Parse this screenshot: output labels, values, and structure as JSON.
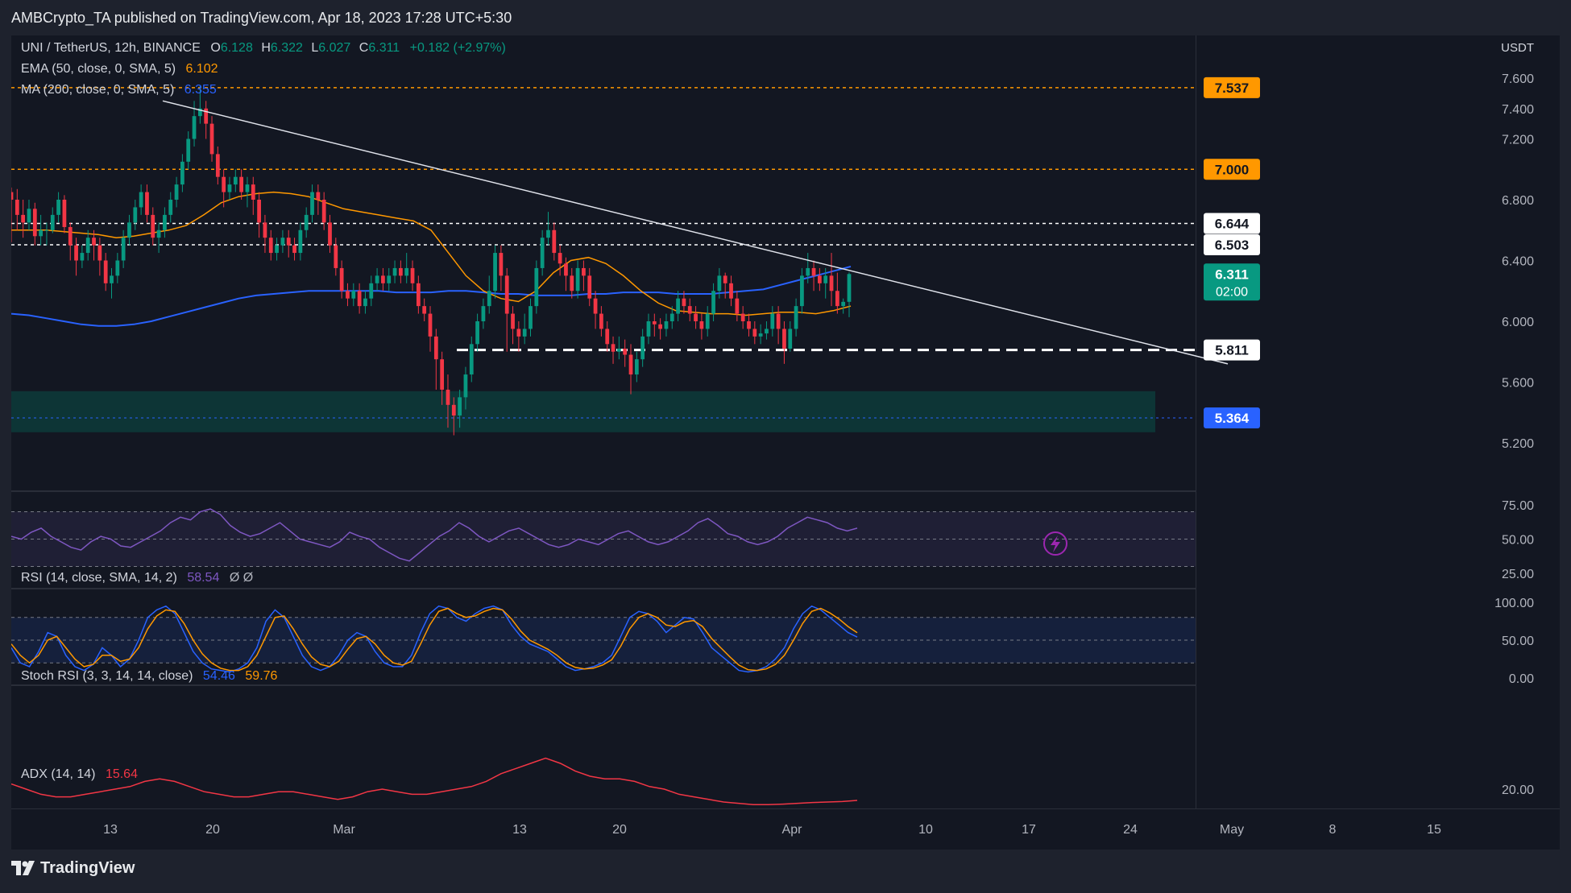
{
  "header": {
    "publisher": "AMBCrypto_TA published on TradingView.com, Apr 18, 2023 17:28 UTC+5:30"
  },
  "footer": {
    "brand": "TradingView"
  },
  "currency": "USDT",
  "legend": {
    "symbol": "UNI / TetherUS, 12h, BINANCE",
    "open_label": "O",
    "open": "6.128",
    "high_label": "H",
    "high": "6.322",
    "low_label": "L",
    "low": "6.027",
    "close_label": "C",
    "close": "6.311",
    "change": "+0.182 (+2.97%)",
    "ema_label": "EMA (50, close, 0, SMA, 5)",
    "ema_value": "6.102",
    "ma_label": "MA (200, close, 0, SMA, 5)",
    "ma_value": "6.355"
  },
  "price_axis": [
    "7.600",
    "7.400",
    "7.200",
    "6.800",
    "6.400",
    "6.000",
    "5.600",
    "5.200"
  ],
  "price_badges": [
    {
      "value": "7.537",
      "color": "#ff9800",
      "text_color": "#131722"
    },
    {
      "value": "7.000",
      "color": "#ff9800",
      "text_color": "#131722"
    },
    {
      "value": "6.644",
      "color": "#ffffff",
      "text_color": "#131722"
    },
    {
      "value": "6.503",
      "color": "#ffffff",
      "text_color": "#131722"
    },
    {
      "value": "6.311",
      "color": "#089981",
      "text_color": "#ffffff",
      "sub": "02:00"
    },
    {
      "value": "5.811",
      "color": "#ffffff",
      "text_color": "#131722"
    },
    {
      "value": "5.364",
      "color": "#2962ff",
      "text_color": "#ffffff"
    }
  ],
  "date_axis": [
    "13",
    "20",
    "Mar",
    "13",
    "20",
    "Apr",
    "10",
    "17",
    "24",
    "May",
    "8",
    "15"
  ],
  "rsi": {
    "label": "RSI (14, close, SMA, 14, 2)",
    "value": "58.54",
    "extra": "Ø Ø",
    "axis": [
      "75.00",
      "50.00",
      "25.00"
    ]
  },
  "stoch": {
    "label": "Stoch RSI (3, 3, 14, 14, close)",
    "k": "54.46",
    "d": "59.76",
    "axis": [
      "100.00",
      "50.00",
      "0.00"
    ]
  },
  "adx": {
    "label": "ADX (14, 14)",
    "value": "15.64",
    "axis": [
      "20.00"
    ]
  },
  "colors": {
    "up": "#089981",
    "down": "#f23645",
    "ema": "#ff9800",
    "ma": "#2962ff",
    "rsi": "#7e57c2",
    "adx": "#f23645"
  },
  "chart_data": {
    "type": "candlestick",
    "symbol": "UNI/USDT",
    "interval": "12h",
    "y_range": [
      5.2,
      7.6
    ],
    "support_levels": [
      5.811,
      5.364
    ],
    "resistance_levels": [
      6.503,
      6.644,
      7.0,
      7.537
    ],
    "demand_zone": [
      5.27,
      5.54
    ],
    "trendline": {
      "from": 7.45,
      "to": 5.72
    },
    "candles": [
      [
        6.85,
        6.8,
        6.88,
        6.52
      ],
      [
        6.8,
        6.7,
        6.87,
        6.6
      ],
      [
        6.7,
        6.65,
        6.8,
        6.55
      ],
      [
        6.65,
        6.74,
        6.8,
        6.6
      ],
      [
        6.74,
        6.56,
        6.78,
        6.5
      ],
      [
        6.56,
        6.6,
        6.7,
        6.5
      ],
      [
        6.6,
        6.6,
        6.65,
        6.5
      ],
      [
        6.6,
        6.7,
        6.75,
        6.58
      ],
      [
        6.7,
        6.8,
        6.85,
        6.65
      ],
      [
        6.8,
        6.62,
        6.83,
        6.58
      ],
      [
        6.62,
        6.5,
        6.65,
        6.4
      ],
      [
        6.5,
        6.4,
        6.55,
        6.3
      ],
      [
        6.4,
        6.45,
        6.5,
        6.35
      ],
      [
        6.45,
        6.55,
        6.6,
        6.4
      ],
      [
        6.55,
        6.5,
        6.6,
        6.4
      ],
      [
        6.5,
        6.4,
        6.55,
        6.3
      ],
      [
        6.4,
        6.25,
        6.45,
        6.2
      ],
      [
        6.25,
        6.3,
        6.35,
        6.15
      ],
      [
        6.3,
        6.4,
        6.45,
        6.25
      ],
      [
        6.4,
        6.55,
        6.6,
        6.35
      ],
      [
        6.55,
        6.65,
        6.7,
        6.5
      ],
      [
        6.65,
        6.75,
        6.8,
        6.6
      ],
      [
        6.75,
        6.85,
        6.9,
        6.7
      ],
      [
        6.85,
        6.7,
        6.9,
        6.65
      ],
      [
        6.7,
        6.55,
        6.75,
        6.5
      ],
      [
        6.55,
        6.6,
        6.65,
        6.45
      ],
      [
        6.6,
        6.7,
        6.75,
        6.55
      ],
      [
        6.7,
        6.8,
        6.85,
        6.65
      ],
      [
        6.8,
        6.9,
        6.95,
        6.75
      ],
      [
        6.9,
        7.05,
        7.1,
        6.85
      ],
      [
        7.05,
        7.2,
        7.25,
        7.0
      ],
      [
        7.2,
        7.35,
        7.45,
        7.15
      ],
      [
        7.35,
        7.4,
        7.55,
        7.3
      ],
      [
        7.4,
        7.3,
        7.45,
        7.2
      ],
      [
        7.3,
        7.1,
        7.35,
        7.05
      ],
      [
        7.1,
        6.95,
        7.15,
        6.9
      ],
      [
        6.95,
        6.85,
        7.0,
        6.75
      ],
      [
        6.85,
        6.9,
        6.95,
        6.8
      ],
      [
        6.9,
        6.95,
        7.0,
        6.85
      ],
      [
        6.95,
        6.85,
        7.0,
        6.8
      ],
      [
        6.85,
        6.9,
        6.95,
        6.75
      ],
      [
        6.9,
        6.8,
        6.95,
        6.7
      ],
      [
        6.8,
        6.65,
        6.85,
        6.55
      ],
      [
        6.65,
        6.55,
        6.7,
        6.45
      ],
      [
        6.55,
        6.45,
        6.6,
        6.4
      ],
      [
        6.45,
        6.5,
        6.55,
        6.4
      ],
      [
        6.5,
        6.55,
        6.6,
        6.45
      ],
      [
        6.55,
        6.5,
        6.6,
        6.42
      ],
      [
        6.5,
        6.45,
        6.55,
        6.4
      ],
      [
        6.45,
        6.6,
        6.65,
        6.4
      ],
      [
        6.6,
        6.7,
        6.75,
        6.55
      ],
      [
        6.7,
        6.85,
        6.9,
        6.65
      ],
      [
        6.85,
        6.8,
        6.9,
        6.7
      ],
      [
        6.8,
        6.65,
        6.85,
        6.6
      ],
      [
        6.65,
        6.5,
        6.7,
        6.45
      ],
      [
        6.5,
        6.35,
        6.55,
        6.3
      ],
      [
        6.35,
        6.2,
        6.4,
        6.15
      ],
      [
        6.2,
        6.15,
        6.25,
        6.1
      ],
      [
        6.15,
        6.2,
        6.25,
        6.1
      ],
      [
        6.2,
        6.1,
        6.25,
        6.05
      ],
      [
        6.1,
        6.15,
        6.2,
        6.05
      ],
      [
        6.15,
        6.25,
        6.3,
        6.1
      ],
      [
        6.25,
        6.3,
        6.35,
        6.2
      ],
      [
        6.3,
        6.25,
        6.35,
        6.2
      ],
      [
        6.25,
        6.3,
        6.35,
        6.2
      ],
      [
        6.3,
        6.35,
        6.4,
        6.25
      ],
      [
        6.35,
        6.3,
        6.4,
        6.25
      ],
      [
        6.3,
        6.35,
        6.45,
        6.25
      ],
      [
        6.35,
        6.25,
        6.4,
        6.2
      ],
      [
        6.25,
        6.1,
        6.3,
        6.05
      ],
      [
        6.1,
        6.05,
        6.15,
        6.0
      ],
      [
        6.05,
        5.9,
        6.1,
        5.8
      ],
      [
        5.9,
        5.75,
        5.95,
        5.55
      ],
      [
        5.75,
        5.55,
        5.8,
        5.45
      ],
      [
        5.55,
        5.45,
        5.65,
        5.3
      ],
      [
        5.45,
        5.38,
        5.5,
        5.25
      ],
      [
        5.38,
        5.5,
        5.55,
        5.3
      ],
      [
        5.5,
        5.65,
        5.7,
        5.42
      ],
      [
        5.65,
        5.85,
        5.9,
        5.6
      ],
      [
        5.85,
        6.0,
        6.05,
        5.8
      ],
      [
        6.0,
        6.1,
        6.15,
        5.95
      ],
      [
        6.1,
        6.2,
        6.3,
        6.05
      ],
      [
        6.2,
        6.45,
        6.5,
        6.15
      ],
      [
        6.45,
        6.3,
        6.5,
        6.2
      ],
      [
        6.3,
        6.05,
        6.35,
        5.8
      ],
      [
        6.05,
        5.95,
        6.1,
        5.85
      ],
      [
        5.95,
        5.9,
        6.0,
        5.8
      ],
      [
        5.9,
        5.95,
        6.05,
        5.85
      ],
      [
        5.95,
        6.1,
        6.15,
        5.9
      ],
      [
        6.1,
        6.35,
        6.4,
        6.05
      ],
      [
        6.35,
        6.55,
        6.6,
        6.3
      ],
      [
        6.55,
        6.6,
        6.72,
        6.5
      ],
      [
        6.6,
        6.45,
        6.65,
        6.4
      ],
      [
        6.45,
        6.38,
        6.5,
        6.3
      ],
      [
        6.38,
        6.3,
        6.42,
        6.2
      ],
      [
        6.3,
        6.2,
        6.35,
        6.15
      ],
      [
        6.2,
        6.35,
        6.4,
        6.15
      ],
      [
        6.35,
        6.3,
        6.4,
        6.2
      ],
      [
        6.3,
        6.15,
        6.35,
        6.1
      ],
      [
        6.15,
        6.05,
        6.2,
        5.95
      ],
      [
        6.05,
        5.95,
        6.1,
        5.9
      ],
      [
        5.95,
        5.85,
        6.0,
        5.8
      ],
      [
        5.85,
        5.8,
        5.9,
        5.72
      ],
      [
        5.8,
        5.82,
        5.9,
        5.75
      ],
      [
        5.82,
        5.78,
        5.88,
        5.7
      ],
      [
        5.78,
        5.65,
        5.85,
        5.52
      ],
      [
        5.65,
        5.75,
        5.8,
        5.6
      ],
      [
        5.75,
        5.9,
        5.95,
        5.7
      ],
      [
        5.9,
        6.0,
        6.05,
        5.85
      ],
      [
        6.0,
        5.98,
        6.05,
        5.9
      ],
      [
        5.98,
        5.95,
        6.02,
        5.88
      ],
      [
        5.95,
        6.0,
        6.05,
        5.9
      ],
      [
        6.0,
        6.05,
        6.1,
        5.95
      ],
      [
        6.05,
        6.15,
        6.2,
        6.0
      ],
      [
        6.15,
        6.1,
        6.2,
        6.05
      ],
      [
        6.1,
        6.05,
        6.15,
        6.0
      ],
      [
        6.05,
        6.0,
        6.1,
        5.95
      ],
      [
        6.0,
        5.95,
        6.05,
        5.88
      ],
      [
        5.95,
        6.05,
        6.1,
        5.9
      ],
      [
        6.05,
        6.2,
        6.25,
        6.0
      ],
      [
        6.2,
        6.3,
        6.35,
        6.15
      ],
      [
        6.3,
        6.25,
        6.32,
        6.15
      ],
      [
        6.25,
        6.15,
        6.3,
        6.1
      ],
      [
        6.15,
        6.05,
        6.2,
        6.0
      ],
      [
        6.05,
        6.0,
        6.1,
        5.95
      ],
      [
        6.0,
        5.95,
        6.05,
        5.9
      ],
      [
        5.95,
        5.9,
        6.0,
        5.85
      ],
      [
        5.9,
        5.92,
        5.98,
        5.85
      ],
      [
        5.92,
        5.95,
        6.0,
        5.88
      ],
      [
        5.95,
        6.05,
        6.1,
        5.9
      ],
      [
        6.05,
        5.95,
        6.1,
        5.85
      ],
      [
        5.95,
        5.82,
        6.0,
        5.72
      ],
      [
        5.82,
        5.95,
        6.0,
        5.8
      ],
      [
        5.95,
        6.1,
        6.15,
        5.9
      ],
      [
        6.1,
        6.3,
        6.35,
        6.05
      ],
      [
        6.3,
        6.35,
        6.45,
        6.25
      ],
      [
        6.35,
        6.3,
        6.4,
        6.2
      ],
      [
        6.3,
        6.25,
        6.35,
        6.2
      ],
      [
        6.25,
        6.3,
        6.35,
        6.15
      ],
      [
        6.3,
        6.2,
        6.45,
        6.1
      ],
      [
        6.2,
        6.1,
        6.32,
        6.05
      ],
      [
        6.1,
        6.128,
        6.15,
        6.05
      ],
      [
        6.128,
        6.311,
        6.322,
        6.027
      ]
    ],
    "ema50": [
      6.6,
      6.6,
      6.6,
      6.59,
      6.58,
      6.57,
      6.55,
      6.56,
      6.58,
      6.6,
      6.63,
      6.7,
      6.78,
      6.82,
      6.84,
      6.85,
      6.84,
      6.82,
      6.78,
      6.74,
      6.72,
      6.7,
      6.68,
      6.66,
      6.6,
      6.45,
      6.3,
      6.2,
      6.15,
      6.13,
      6.2,
      6.32,
      6.4,
      6.42,
      6.38,
      6.3,
      6.2,
      6.12,
      6.07,
      6.06,
      6.05,
      6.05,
      6.04,
      6.05,
      6.06,
      6.06,
      6.05,
      6.07,
      6.1
    ],
    "ma200": [
      6.05,
      6.04,
      6.02,
      6.0,
      5.98,
      5.97,
      5.97,
      5.98,
      6.0,
      6.03,
      6.06,
      6.09,
      6.12,
      6.15,
      6.17,
      6.18,
      6.19,
      6.2,
      6.2,
      6.2,
      6.2,
      6.2,
      6.19,
      6.19,
      6.19,
      6.2,
      6.2,
      6.19,
      6.18,
      6.18,
      6.17,
      6.17,
      6.17,
      6.18,
      6.18,
      6.19,
      6.19,
      6.19,
      6.18,
      6.18,
      6.18,
      6.19,
      6.2,
      6.21,
      6.24,
      6.27,
      6.3,
      6.33,
      6.36
    ],
    "rsi_values": [
      52,
      50,
      55,
      58,
      52,
      48,
      44,
      42,
      48,
      52,
      50,
      45,
      44,
      48,
      52,
      56,
      62,
      66,
      64,
      70,
      72,
      68,
      60,
      55,
      52,
      54,
      58,
      62,
      56,
      50,
      48,
      46,
      44,
      48,
      55,
      52,
      50,
      44,
      40,
      36,
      34,
      40,
      46,
      52,
      56,
      62,
      58,
      52,
      48,
      52,
      56,
      58,
      54,
      50,
      46,
      44,
      46,
      50,
      48,
      46,
      50,
      54,
      56,
      52,
      48,
      46,
      48,
      52,
      56,
      62,
      65,
      60,
      54,
      52,
      48,
      46,
      48,
      52,
      58,
      62,
      66,
      64,
      62,
      58,
      56,
      58
    ],
    "stoch_k": [
      40,
      20,
      15,
      35,
      60,
      55,
      30,
      15,
      10,
      18,
      40,
      30,
      15,
      25,
      50,
      80,
      90,
      95,
      85,
      60,
      35,
      20,
      12,
      10,
      8,
      12,
      20,
      40,
      75,
      90,
      80,
      55,
      30,
      15,
      10,
      15,
      30,
      50,
      60,
      55,
      35,
      20,
      15,
      15,
      30,
      60,
      85,
      95,
      92,
      80,
      75,
      85,
      92,
      95,
      90,
      70,
      55,
      45,
      40,
      35,
      25,
      15,
      10,
      12,
      15,
      20,
      30,
      55,
      80,
      88,
      85,
      75,
      60,
      70,
      80,
      78,
      60,
      40,
      30,
      20,
      10,
      8,
      10,
      15,
      25,
      40,
      65,
      85,
      95,
      90,
      80,
      70,
      60,
      54
    ],
    "stoch_d": [
      45,
      30,
      20,
      30,
      50,
      55,
      40,
      25,
      15,
      18,
      30,
      30,
      22,
      25,
      40,
      65,
      82,
      90,
      88,
      72,
      50,
      32,
      20,
      13,
      10,
      10,
      15,
      30,
      55,
      80,
      82,
      65,
      45,
      28,
      18,
      15,
      22,
      38,
      52,
      55,
      45,
      30,
      20,
      17,
      22,
      45,
      70,
      88,
      92,
      85,
      80,
      82,
      88,
      92,
      90,
      78,
      62,
      50,
      44,
      38,
      30,
      20,
      14,
      12,
      13,
      17,
      24,
      42,
      65,
      80,
      85,
      80,
      70,
      68,
      74,
      76,
      68,
      52,
      40,
      28,
      17,
      11,
      10,
      12,
      18,
      30,
      50,
      72,
      88,
      92,
      86,
      78,
      68,
      59.76
    ],
    "adx_values": [
      22,
      20,
      18,
      17,
      17,
      18,
      19,
      20,
      21,
      23,
      24,
      23,
      21,
      19,
      18,
      17,
      17,
      18,
      19,
      19,
      18,
      17,
      16,
      17,
      19,
      20,
      19,
      18,
      18,
      19,
      20,
      21,
      23,
      26,
      28,
      30,
      32,
      30,
      27,
      25,
      24,
      24,
      23,
      21,
      20,
      18,
      17,
      16,
      15,
      14.5,
      14,
      14,
      14.2,
      14.5,
      14.8,
      15,
      15.2,
      15.64
    ]
  }
}
